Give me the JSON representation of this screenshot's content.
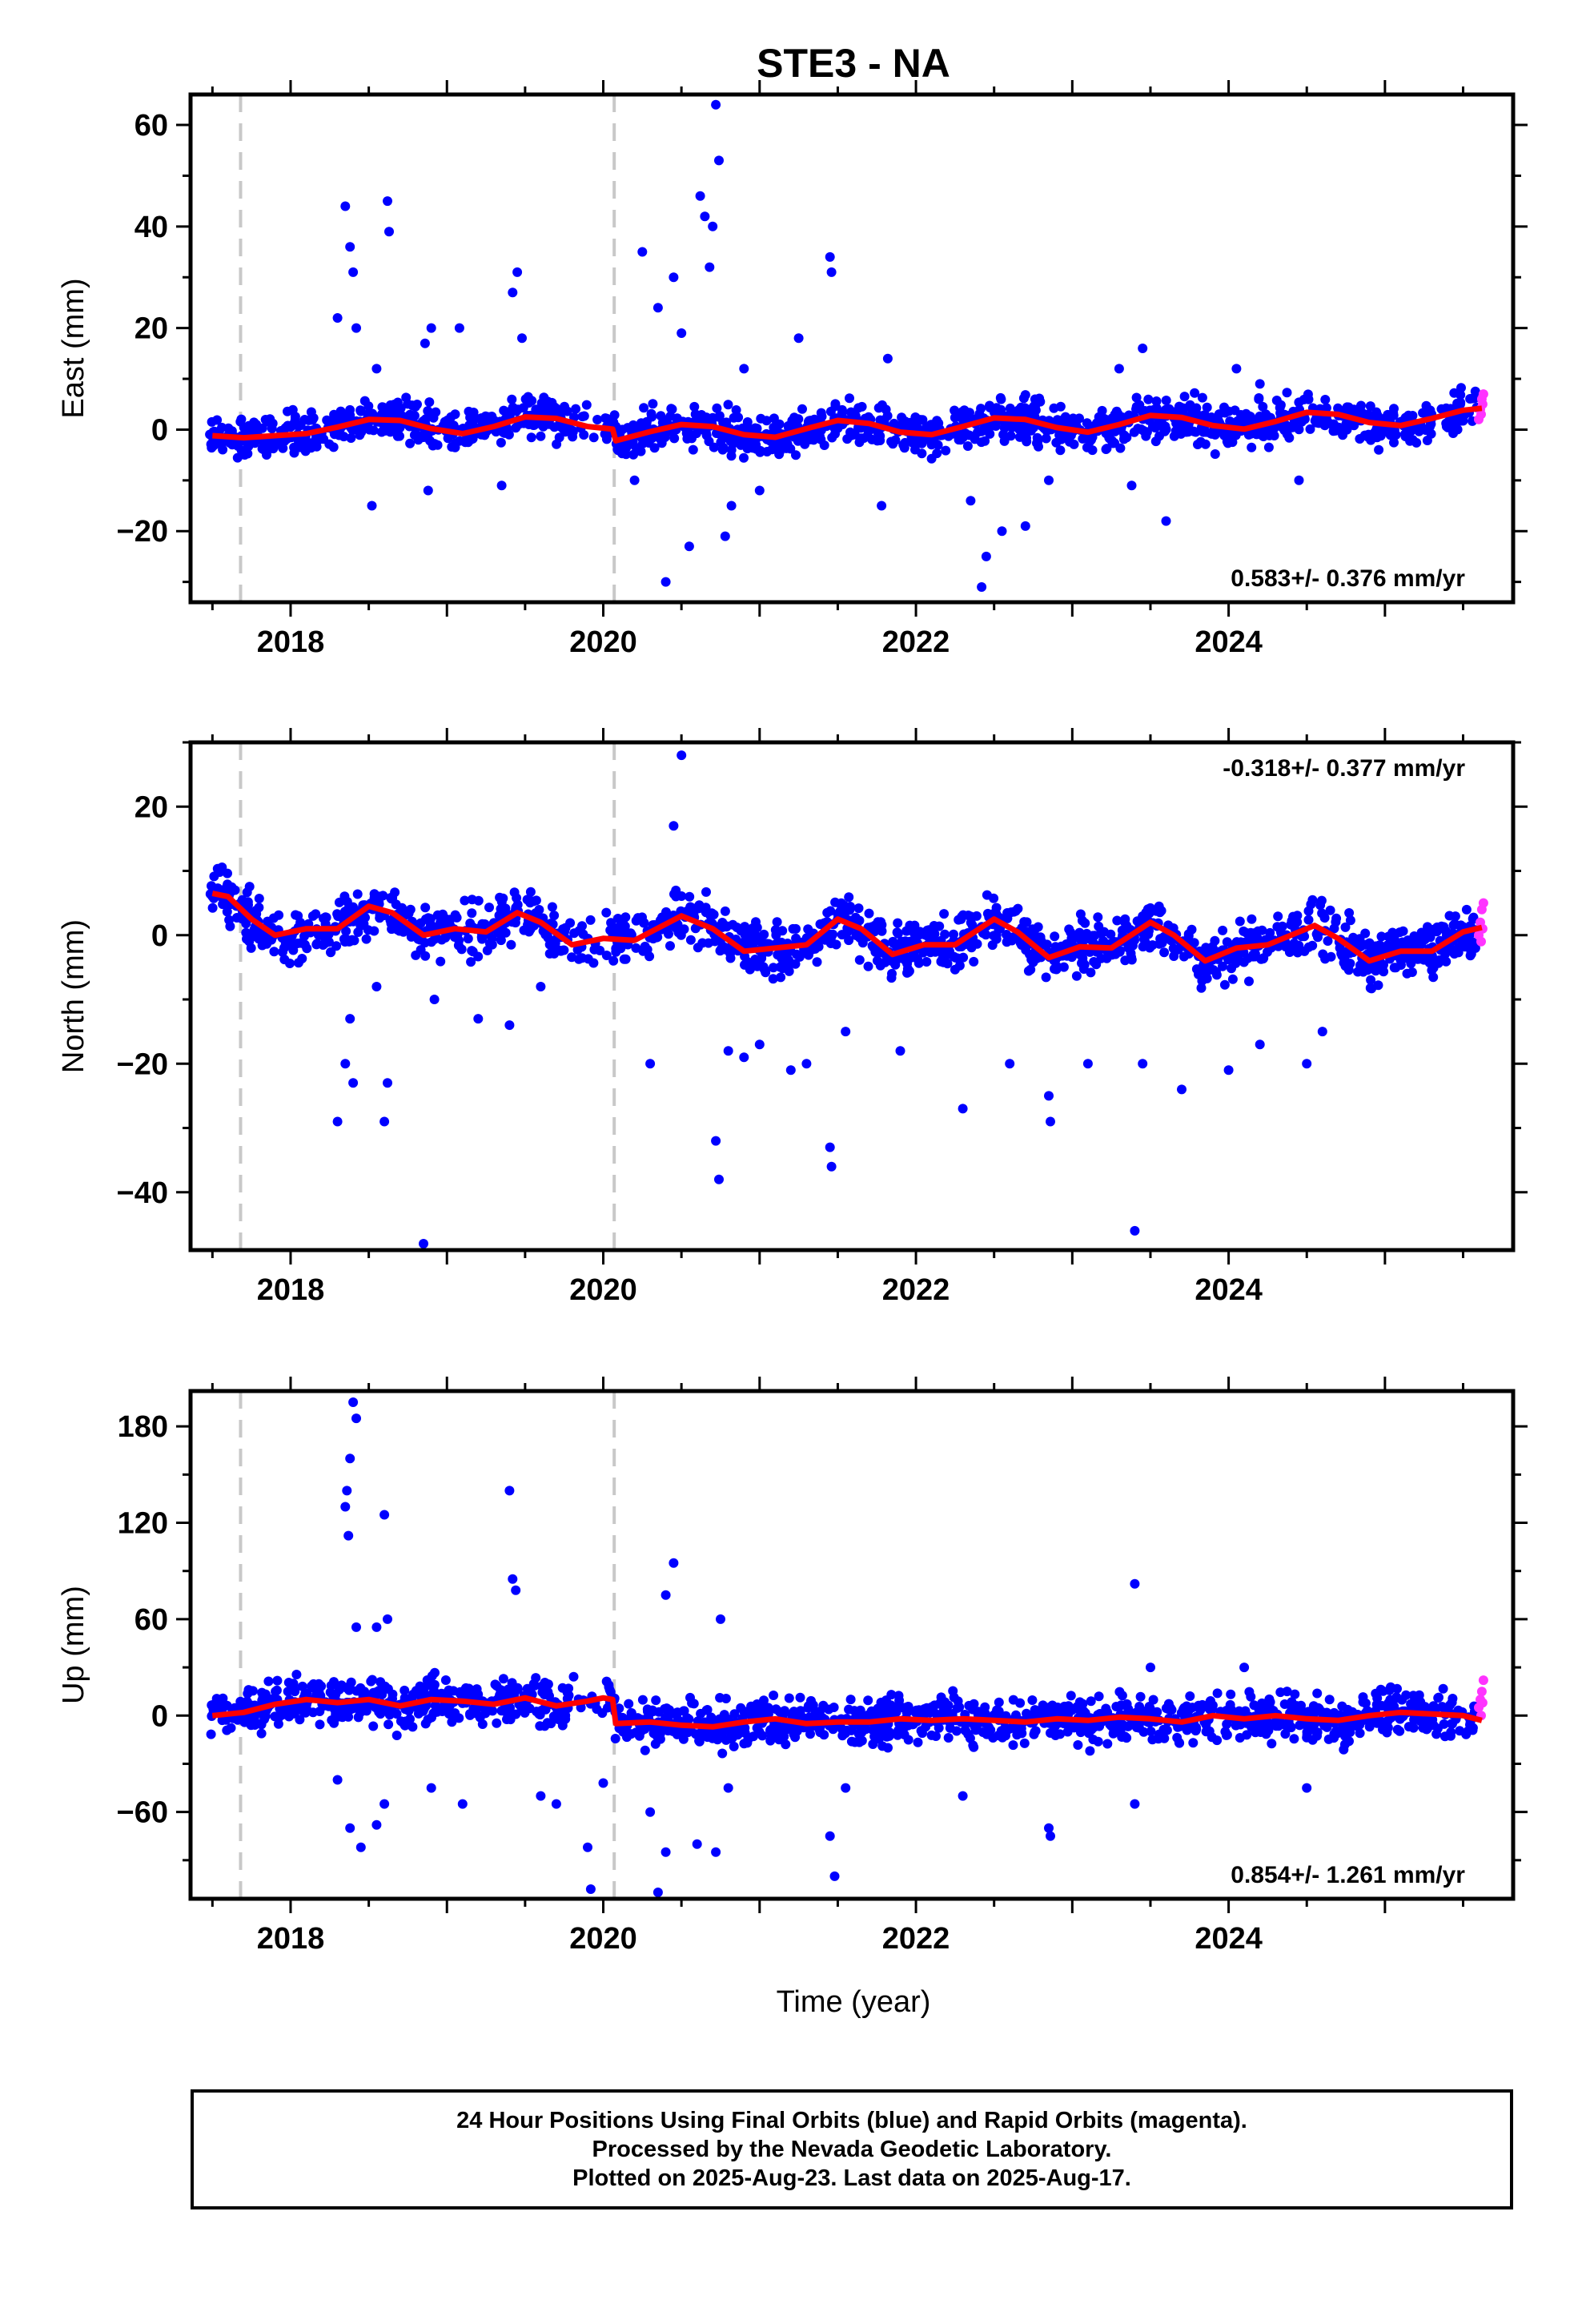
{
  "title": "STE3 - NA",
  "xlabel": "Time (year)",
  "caption": {
    "line1": "24 Hour Positions Using Final Orbits (blue) and Rapid Orbits (magenta).",
    "line2": "Processed by the Nevada Geodetic Laboratory.",
    "line3": "Plotted on 2025-Aug-23. Last data on 2025-Aug-17."
  },
  "colors": {
    "final_orbits": "#0000ff",
    "rapid_orbits": "#ff33ff",
    "model": "#ff0000",
    "offset_lines": "#c8c8c8"
  },
  "chart_data": [
    {
      "type": "scatter",
      "component": "east",
      "ylabel": "East (mm)",
      "rate_label": "0.583+/- 0.376 mm/yr",
      "rate_position": "bottom-right",
      "xlim": [
        2017.36,
        2025.82
      ],
      "ylim": [
        -34,
        66
      ],
      "yticks": [
        -20,
        0,
        20,
        40,
        60
      ],
      "xticks": [
        2018,
        2020,
        2022,
        2024
      ],
      "offsets": [
        2017.68,
        2020.07
      ],
      "grid": false,
      "model": [
        [
          2017.5,
          -1.2
        ],
        [
          2017.7,
          -1.6
        ],
        [
          2017.9,
          -1.2
        ],
        [
          2018.1,
          -0.8
        ],
        [
          2018.3,
          0.5
        ],
        [
          2018.5,
          2.0
        ],
        [
          2018.7,
          1.8
        ],
        [
          2018.9,
          0.2
        ],
        [
          2019.1,
          -0.8
        ],
        [
          2019.3,
          0.6
        ],
        [
          2019.5,
          2.5
        ],
        [
          2019.7,
          2.2
        ],
        [
          2019.9,
          0.6
        ],
        [
          2020.06,
          0.1
        ],
        [
          2020.08,
          -2.2
        ],
        [
          2020.3,
          -0.4
        ],
        [
          2020.5,
          1.0
        ],
        [
          2020.7,
          0.6
        ],
        [
          2020.9,
          -1.0
        ],
        [
          2021.1,
          -1.5
        ],
        [
          2021.3,
          0.2
        ],
        [
          2021.5,
          1.8
        ],
        [
          2021.7,
          1.2
        ],
        [
          2021.9,
          -0.5
        ],
        [
          2022.1,
          -1.0
        ],
        [
          2022.3,
          0.6
        ],
        [
          2022.5,
          2.3
        ],
        [
          2022.7,
          2.0
        ],
        [
          2022.9,
          0.4
        ],
        [
          2023.1,
          -0.5
        ],
        [
          2023.3,
          1.0
        ],
        [
          2023.5,
          2.8
        ],
        [
          2023.7,
          2.4
        ],
        [
          2023.9,
          0.8
        ],
        [
          2024.1,
          0.1
        ],
        [
          2024.3,
          1.6
        ],
        [
          2024.5,
          3.4
        ],
        [
          2024.7,
          3.0
        ],
        [
          2024.9,
          1.4
        ],
        [
          2025.1,
          0.8
        ],
        [
          2025.3,
          2.2
        ],
        [
          2025.5,
          3.8
        ],
        [
          2025.62,
          4.2
        ]
      ],
      "outliers": [
        [
          2018.35,
          44
        ],
        [
          2018.38,
          36
        ],
        [
          2018.4,
          31
        ],
        [
          2018.42,
          20
        ],
        [
          2018.3,
          22
        ],
        [
          2018.62,
          45
        ],
        [
          2018.63,
          39
        ],
        [
          2018.55,
          12
        ],
        [
          2018.9,
          20
        ],
        [
          2018.86,
          17
        ],
        [
          2018.88,
          -12
        ],
        [
          2019.08,
          20
        ],
        [
          2019.45,
          31
        ],
        [
          2019.42,
          27
        ],
        [
          2019.48,
          18
        ],
        [
          2019.35,
          -11
        ],
        [
          2018.52,
          -15
        ],
        [
          2020.25,
          35
        ],
        [
          2020.35,
          24
        ],
        [
          2020.2,
          -10
        ],
        [
          2020.45,
          30
        ],
        [
          2020.5,
          19
        ],
        [
          2020.55,
          -23
        ],
        [
          2020.4,
          -30
        ],
        [
          2020.72,
          64
        ],
        [
          2020.74,
          53
        ],
        [
          2020.62,
          46
        ],
        [
          2020.65,
          42
        ],
        [
          2020.68,
          32
        ],
        [
          2020.7,
          40
        ],
        [
          2020.78,
          -21
        ],
        [
          2020.82,
          -15
        ],
        [
          2020.9,
          12
        ],
        [
          2021.0,
          -12
        ],
        [
          2021.25,
          18
        ],
        [
          2021.45,
          34
        ],
        [
          2021.46,
          31
        ],
        [
          2021.78,
          -15
        ],
        [
          2021.82,
          14
        ],
        [
          2022.35,
          -14
        ],
        [
          2022.45,
          -25
        ],
        [
          2022.42,
          -31
        ],
        [
          2022.55,
          -20
        ],
        [
          2022.7,
          -19
        ],
        [
          2022.85,
          -10
        ],
        [
          2023.3,
          12
        ],
        [
          2023.45,
          16
        ],
        [
          2023.38,
          -11
        ],
        [
          2023.6,
          -18
        ],
        [
          2024.05,
          12
        ],
        [
          2024.2,
          9
        ],
        [
          2024.45,
          -10
        ]
      ],
      "rapid": [
        [
          2025.6,
          2
        ],
        [
          2025.61,
          4
        ],
        [
          2025.62,
          6
        ],
        [
          2025.63,
          7
        ],
        [
          2025.615,
          3
        ],
        [
          2025.625,
          5
        ]
      ]
    },
    {
      "type": "scatter",
      "component": "north",
      "ylabel": "North (mm)",
      "rate_label": "-0.318+/- 0.377 mm/yr",
      "rate_position": "top-right",
      "xlim": [
        2017.36,
        2025.82
      ],
      "ylim": [
        -49,
        30
      ],
      "yticks": [
        -40,
        -20,
        0,
        20
      ],
      "xticks": [
        2018,
        2020,
        2022,
        2024
      ],
      "offsets": [
        2017.68,
        2020.07
      ],
      "grid": false,
      "model": [
        [
          2017.5,
          6.5
        ],
        [
          2017.6,
          6.0
        ],
        [
          2017.75,
          2.5
        ],
        [
          2017.9,
          0.0
        ],
        [
          2018.1,
          1.0
        ],
        [
          2018.3,
          1.0
        ],
        [
          2018.5,
          4.5
        ],
        [
          2018.65,
          3.5
        ],
        [
          2018.85,
          0.0
        ],
        [
          2019.05,
          1.0
        ],
        [
          2019.25,
          0.5
        ],
        [
          2019.45,
          3.5
        ],
        [
          2019.6,
          2.0
        ],
        [
          2019.8,
          -1.5
        ],
        [
          2020.0,
          -0.5
        ],
        [
          2020.2,
          -0.8
        ],
        [
          2020.5,
          3.0
        ],
        [
          2020.7,
          1.0
        ],
        [
          2020.9,
          -2.5
        ],
        [
          2021.1,
          -2.0
        ],
        [
          2021.3,
          -1.5
        ],
        [
          2021.5,
          2.5
        ],
        [
          2021.65,
          1.0
        ],
        [
          2021.85,
          -3.0
        ],
        [
          2022.05,
          -1.5
        ],
        [
          2022.25,
          -1.5
        ],
        [
          2022.5,
          2.5
        ],
        [
          2022.65,
          0.5
        ],
        [
          2022.85,
          -3.5
        ],
        [
          2023.05,
          -1.8
        ],
        [
          2023.25,
          -2.0
        ],
        [
          2023.5,
          2.0
        ],
        [
          2023.65,
          0.0
        ],
        [
          2023.85,
          -4.0
        ],
        [
          2024.05,
          -2.0
        ],
        [
          2024.25,
          -1.5
        ],
        [
          2024.55,
          1.5
        ],
        [
          2024.7,
          -0.5
        ],
        [
          2024.9,
          -4.0
        ],
        [
          2025.1,
          -2.5
        ],
        [
          2025.3,
          -2.5
        ],
        [
          2025.5,
          0.5
        ],
        [
          2025.62,
          1.2
        ]
      ],
      "outliers": [
        [
          2018.3,
          -29
        ],
        [
          2018.35,
          -20
        ],
        [
          2018.38,
          -13
        ],
        [
          2018.4,
          -23
        ],
        [
          2018.6,
          -29
        ],
        [
          2018.62,
          -23
        ],
        [
          2018.55,
          -8
        ],
        [
          2018.85,
          -48
        ],
        [
          2018.92,
          -10
        ],
        [
          2019.2,
          -13
        ],
        [
          2019.4,
          -14
        ],
        [
          2019.6,
          -8
        ],
        [
          2020.3,
          -20
        ],
        [
          2020.5,
          28
        ],
        [
          2020.45,
          17
        ],
        [
          2020.72,
          -32
        ],
        [
          2020.74,
          -38
        ],
        [
          2020.8,
          -18
        ],
        [
          2020.9,
          -19
        ],
        [
          2021.0,
          -17
        ],
        [
          2021.2,
          -21
        ],
        [
          2021.3,
          -20
        ],
        [
          2021.45,
          -33
        ],
        [
          2021.46,
          -36
        ],
        [
          2021.55,
          -15
        ],
        [
          2021.9,
          -18
        ],
        [
          2022.3,
          -27
        ],
        [
          2022.6,
          -20
        ],
        [
          2022.85,
          -25
        ],
        [
          2022.86,
          -29
        ],
        [
          2023.1,
          -20
        ],
        [
          2023.4,
          -46
        ],
        [
          2023.45,
          -20
        ],
        [
          2023.7,
          -24
        ],
        [
          2024.0,
          -21
        ],
        [
          2024.2,
          -17
        ],
        [
          2024.5,
          -20
        ],
        [
          2024.6,
          -15
        ]
      ],
      "rapid": [
        [
          2025.6,
          0
        ],
        [
          2025.61,
          2
        ],
        [
          2025.62,
          4
        ],
        [
          2025.63,
          5
        ],
        [
          2025.615,
          -1
        ],
        [
          2025.625,
          1
        ]
      ]
    },
    {
      "type": "scatter",
      "component": "up",
      "ylabel": "Up (mm)",
      "rate_label": "0.854+/- 1.261 mm/yr",
      "rate_position": "bottom-right",
      "xlim": [
        2017.36,
        2025.82
      ],
      "ylim": [
        -114,
        202
      ],
      "yticks": [
        -60,
        0,
        60,
        120,
        180
      ],
      "xticks": [
        2018,
        2020,
        2022,
        2024
      ],
      "offsets": [
        2017.68,
        2020.07
      ],
      "grid": false,
      "model": [
        [
          2017.5,
          0
        ],
        [
          2017.7,
          2
        ],
        [
          2017.9,
          7
        ],
        [
          2018.1,
          10
        ],
        [
          2018.3,
          8
        ],
        [
          2018.5,
          10
        ],
        [
          2018.7,
          6
        ],
        [
          2018.9,
          10
        ],
        [
          2019.1,
          9
        ],
        [
          2019.3,
          7
        ],
        [
          2019.5,
          11
        ],
        [
          2019.7,
          6
        ],
        [
          2019.9,
          9
        ],
        [
          2020.0,
          11
        ],
        [
          2020.06,
          10
        ],
        [
          2020.08,
          -5
        ],
        [
          2020.3,
          -4
        ],
        [
          2020.5,
          -6
        ],
        [
          2020.7,
          -7
        ],
        [
          2020.9,
          -4
        ],
        [
          2021.1,
          -2
        ],
        [
          2021.3,
          -5
        ],
        [
          2021.5,
          -4
        ],
        [
          2021.7,
          -4
        ],
        [
          2021.9,
          -2
        ],
        [
          2022.1,
          -3
        ],
        [
          2022.3,
          -2
        ],
        [
          2022.5,
          -3
        ],
        [
          2022.7,
          -4
        ],
        [
          2022.9,
          -2
        ],
        [
          2023.1,
          -3
        ],
        [
          2023.3,
          -1
        ],
        [
          2023.5,
          -2
        ],
        [
          2023.7,
          -4
        ],
        [
          2023.9,
          0
        ],
        [
          2024.1,
          -2
        ],
        [
          2024.3,
          0
        ],
        [
          2024.5,
          -2
        ],
        [
          2024.7,
          -3
        ],
        [
          2024.9,
          0
        ],
        [
          2025.1,
          2
        ],
        [
          2025.3,
          1
        ],
        [
          2025.5,
          0
        ],
        [
          2025.62,
          -3
        ]
      ],
      "outliers": [
        [
          2018.4,
          195
        ],
        [
          2018.42,
          185
        ],
        [
          2018.38,
          160
        ],
        [
          2018.36,
          140
        ],
        [
          2018.35,
          130
        ],
        [
          2018.37,
          112
        ],
        [
          2018.6,
          125
        ],
        [
          2018.62,
          60
        ],
        [
          2018.55,
          55
        ],
        [
          2018.42,
          55
        ],
        [
          2018.38,
          -70
        ],
        [
          2018.45,
          -82
        ],
        [
          2018.55,
          -68
        ],
        [
          2018.6,
          -55
        ],
        [
          2018.3,
          -40
        ],
        [
          2018.9,
          -45
        ],
        [
          2019.1,
          -55
        ],
        [
          2019.4,
          140
        ],
        [
          2019.42,
          85
        ],
        [
          2019.44,
          78
        ],
        [
          2019.6,
          -50
        ],
        [
          2019.7,
          -55
        ],
        [
          2019.9,
          -82
        ],
        [
          2019.92,
          -108
        ],
        [
          2020.0,
          -42
        ],
        [
          2020.3,
          -60
        ],
        [
          2020.35,
          -110
        ],
        [
          2020.4,
          -85
        ],
        [
          2020.4,
          75
        ],
        [
          2020.45,
          95
        ],
        [
          2020.6,
          -80
        ],
        [
          2020.72,
          -85
        ],
        [
          2020.75,
          60
        ],
        [
          2020.8,
          -45
        ],
        [
          2021.45,
          -75
        ],
        [
          2021.48,
          -100
        ],
        [
          2021.55,
          -45
        ],
        [
          2022.3,
          -50
        ],
        [
          2022.85,
          -70
        ],
        [
          2022.86,
          -75
        ],
        [
          2023.4,
          82
        ],
        [
          2023.4,
          -55
        ],
        [
          2023.5,
          30
        ],
        [
          2024.1,
          30
        ],
        [
          2024.5,
          -45
        ]
      ],
      "rapid": [
        [
          2025.6,
          5
        ],
        [
          2025.61,
          10
        ],
        [
          2025.62,
          15
        ],
        [
          2025.63,
          22
        ],
        [
          2025.615,
          0
        ],
        [
          2025.625,
          8
        ]
      ]
    }
  ]
}
